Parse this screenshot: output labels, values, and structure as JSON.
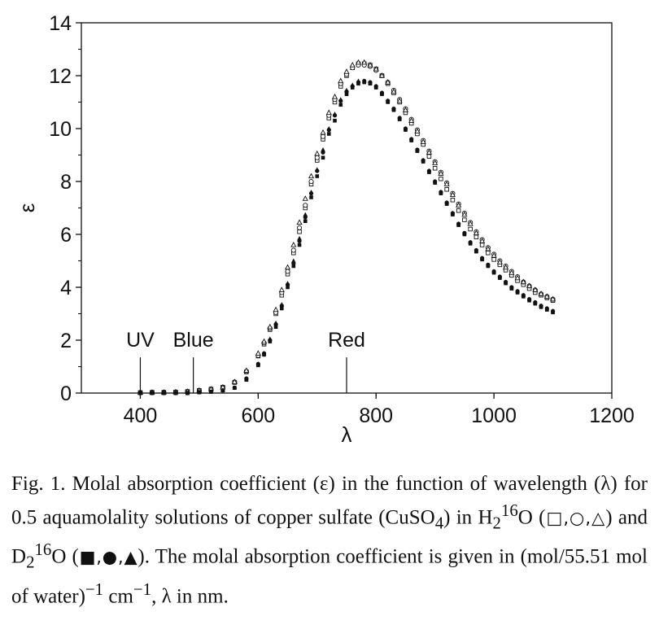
{
  "chart_data": {
    "type": "scatter",
    "xlabel": "λ",
    "ylabel": "ε",
    "xlim": [
      300,
      1200
    ],
    "ylim": [
      0,
      14
    ],
    "xticks": [
      400,
      600,
      800,
      1000,
      1200
    ],
    "yticks": [
      0,
      2,
      4,
      6,
      8,
      10,
      12,
      14
    ],
    "grid": false,
    "annotations": [
      {
        "label": "UV",
        "x": 400
      },
      {
        "label": "Blue",
        "x": 490
      },
      {
        "label": "Red",
        "x": 750
      }
    ],
    "x": [
      400,
      420,
      440,
      460,
      480,
      500,
      520,
      540,
      560,
      580,
      600,
      610,
      620,
      630,
      640,
      650,
      660,
      670,
      680,
      690,
      700,
      710,
      720,
      730,
      740,
      750,
      760,
      770,
      780,
      790,
      800,
      810,
      820,
      830,
      840,
      850,
      860,
      870,
      880,
      890,
      900,
      910,
      920,
      930,
      940,
      950,
      960,
      970,
      980,
      990,
      1000,
      1010,
      1020,
      1030,
      1040,
      1050,
      1060,
      1070,
      1080,
      1090,
      1100
    ],
    "series": [
      {
        "marker": "open-square",
        "values": [
          0.02,
          0.03,
          0.03,
          0.04,
          0.06,
          0.1,
          0.15,
          0.22,
          0.4,
          0.8,
          1.4,
          1.85,
          2.4,
          3.0,
          3.7,
          4.5,
          5.3,
          6.1,
          7.0,
          7.9,
          8.8,
          9.6,
          10.4,
          11.0,
          11.6,
          12.0,
          12.3,
          12.45,
          12.45,
          12.4,
          12.25,
          12.0,
          11.7,
          11.35,
          11.0,
          10.6,
          10.2,
          9.8,
          9.4,
          8.95,
          8.5,
          8.1,
          7.7,
          7.3,
          6.9,
          6.55,
          6.2,
          5.9,
          5.6,
          5.3,
          5.05,
          4.85,
          4.65,
          4.45,
          4.25,
          4.1,
          3.95,
          3.8,
          3.7,
          3.6,
          3.5
        ]
      },
      {
        "marker": "open-circle",
        "values": [
          0.02,
          0.03,
          0.03,
          0.04,
          0.06,
          0.1,
          0.15,
          0.22,
          0.42,
          0.82,
          1.42,
          1.9,
          2.45,
          3.05,
          3.8,
          4.6,
          5.4,
          6.25,
          7.1,
          8.0,
          8.9,
          9.7,
          10.5,
          11.1,
          11.7,
          12.05,
          12.3,
          12.4,
          12.4,
          12.35,
          12.2,
          12.0,
          11.75,
          11.45,
          11.1,
          10.75,
          10.35,
          9.95,
          9.55,
          9.15,
          8.75,
          8.35,
          7.95,
          7.55,
          7.15,
          6.8,
          6.45,
          6.1,
          5.8,
          5.5,
          5.25,
          5.0,
          4.8,
          4.6,
          4.4,
          4.2,
          4.05,
          3.9,
          3.75,
          3.65,
          3.55
        ]
      },
      {
        "marker": "open-triangle",
        "values": [
          0.02,
          0.03,
          0.03,
          0.04,
          0.06,
          0.1,
          0.15,
          0.22,
          0.42,
          0.85,
          1.5,
          1.95,
          2.5,
          3.15,
          3.9,
          4.75,
          5.6,
          6.45,
          7.35,
          8.2,
          9.05,
          9.85,
          10.6,
          11.2,
          11.8,
          12.15,
          12.4,
          12.5,
          12.5,
          12.4,
          12.25,
          12.0,
          11.75,
          11.4,
          11.05,
          10.7,
          10.3,
          9.9,
          9.5,
          9.1,
          8.7,
          8.3,
          7.9,
          7.5,
          7.1,
          6.75,
          6.4,
          6.05,
          5.75,
          5.45,
          5.2,
          4.95,
          4.75,
          4.55,
          4.35,
          4.2,
          4.05,
          3.9,
          3.75,
          3.65,
          3.55
        ]
      },
      {
        "marker": "filled-square",
        "values": [
          0.0,
          0.0,
          0.0,
          0.0,
          0.0,
          0.03,
          0.05,
          0.1,
          0.2,
          0.5,
          1.05,
          1.45,
          1.95,
          2.5,
          3.2,
          4.0,
          4.8,
          5.6,
          6.5,
          7.4,
          8.2,
          8.9,
          9.8,
          10.3,
          10.9,
          11.3,
          11.55,
          11.7,
          11.75,
          11.7,
          11.55,
          11.3,
          11.0,
          10.7,
          10.35,
          9.95,
          9.55,
          9.15,
          8.75,
          8.35,
          7.95,
          7.55,
          7.15,
          6.75,
          6.35,
          6.0,
          5.65,
          5.35,
          5.05,
          4.8,
          4.55,
          4.35,
          4.15,
          3.95,
          3.8,
          3.65,
          3.5,
          3.38,
          3.25,
          3.15,
          3.05
        ]
      },
      {
        "marker": "filled-circle",
        "values": [
          0.0,
          0.0,
          0.0,
          0.0,
          0.0,
          0.03,
          0.05,
          0.1,
          0.2,
          0.55,
          1.1,
          1.5,
          2.0,
          2.6,
          3.3,
          4.1,
          4.9,
          5.75,
          6.65,
          7.55,
          8.4,
          9.1,
          9.95,
          10.5,
          11.05,
          11.4,
          11.6,
          11.75,
          11.8,
          11.75,
          11.6,
          11.35,
          11.05,
          10.75,
          10.4,
          10.0,
          9.6,
          9.2,
          8.8,
          8.4,
          8.0,
          7.6,
          7.2,
          6.8,
          6.4,
          6.05,
          5.7,
          5.4,
          5.1,
          4.85,
          4.6,
          4.4,
          4.2,
          4.0,
          3.85,
          3.7,
          3.55,
          3.43,
          3.3,
          3.2,
          3.1
        ]
      },
      {
        "marker": "filled-triangle",
        "values": [
          0.0,
          0.0,
          0.0,
          0.0,
          0.0,
          0.03,
          0.05,
          0.1,
          0.2,
          0.55,
          1.1,
          1.5,
          2.05,
          2.65,
          3.35,
          4.15,
          5.0,
          5.85,
          6.75,
          7.6,
          8.45,
          9.2,
          10.0,
          10.55,
          11.1,
          11.45,
          11.65,
          11.8,
          11.8,
          11.75,
          11.6,
          11.35,
          11.05,
          10.75,
          10.4,
          10.0,
          9.6,
          9.2,
          8.8,
          8.4,
          8.0,
          7.6,
          7.2,
          6.8,
          6.4,
          6.05,
          5.7,
          5.4,
          5.1,
          4.85,
          4.6,
          4.4,
          4.2,
          4.0,
          3.85,
          3.7,
          3.55,
          3.43,
          3.3,
          3.2,
          3.1
        ]
      }
    ]
  },
  "caption": {
    "fig_label": "Fig. 1.",
    "part1": "Molal absorption coefficient (ε) in the function of wavelength (λ) for 0.5 aquamolality solutions of copper sulfate (CuSO",
    "sub_4": "4",
    "part2": ") in H",
    "sub_2a": "2",
    "sup_16a": "16",
    "part3": "O (",
    "h2o_symbols": "□,○,△",
    "part4": ") and D",
    "sub_2b": "2",
    "sup_16b": "16",
    "part5": "O (",
    "d2o_symbols": "■,●,▲",
    "part6": "). The molal absorption coefficient is given in (mol/55.51 mol of water)",
    "sup_m1a": "−1",
    "part7": " cm",
    "sup_m1b": "−1",
    "part8": ", λ in nm."
  }
}
